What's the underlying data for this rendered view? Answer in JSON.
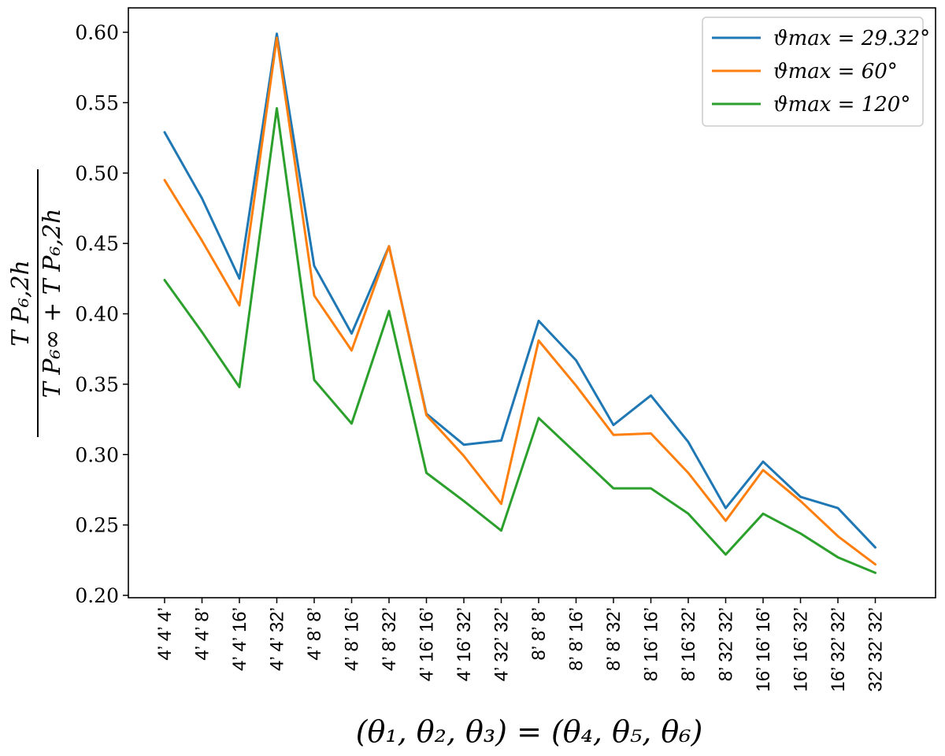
{
  "chart_data": {
    "type": "line",
    "xlabel": "(θ₁, θ₂, θ₃) = (θ₄, θ₅, θ₆)",
    "ylabel": {
      "numerator": "T P₆,2h",
      "denominator": "T P₆∞ + T P₆,2h"
    },
    "ylim": [
      0.2,
      0.6
    ],
    "yticks": [
      "0.20",
      "0.25",
      "0.30",
      "0.35",
      "0.40",
      "0.45",
      "0.50",
      "0.55",
      "0.60"
    ],
    "categories": [
      "4’ 4’ 4’",
      "4’ 4’ 8’",
      "4’ 4’ 16’",
      "4’ 4’ 32’",
      "4’ 8’ 8’",
      "4’ 8’ 16’",
      "4’ 8’ 32’",
      "4’ 16’ 16’",
      "4’ 16’ 32’",
      "4’ 32’ 32’",
      "8’ 8’ 8’",
      "8’ 8’ 16’",
      "8’ 8’ 32’",
      "8’ 16’ 16’",
      "8’ 16’ 32’",
      "8’ 32’ 32’",
      "16’ 16’ 16’",
      "16’ 16’ 32’",
      "16’ 32’ 32’",
      "32’ 32’ 32’"
    ],
    "series": [
      {
        "name": "ϑmax = 29.32°",
        "color": "#1f77b4",
        "values": [
          0.529,
          0.482,
          0.425,
          0.599,
          0.434,
          0.386,
          0.448,
          0.329,
          0.307,
          0.31,
          0.395,
          0.367,
          0.321,
          0.342,
          0.309,
          0.262,
          0.295,
          0.27,
          0.262,
          0.234
        ]
      },
      {
        "name": "ϑmax = 60°",
        "color": "#ff7f0e",
        "values": [
          0.495,
          0.452,
          0.406,
          0.596,
          0.413,
          0.374,
          0.448,
          0.328,
          0.299,
          0.265,
          0.381,
          0.349,
          0.314,
          0.315,
          0.287,
          0.253,
          0.289,
          0.267,
          0.242,
          0.222
        ]
      },
      {
        "name": "ϑmax = 120°",
        "color": "#2ca02c",
        "values": [
          0.424,
          0.387,
          0.348,
          0.546,
          0.353,
          0.322,
          0.402,
          0.287,
          0.267,
          0.246,
          0.326,
          0.301,
          0.276,
          0.276,
          0.258,
          0.229,
          0.258,
          0.244,
          0.227,
          0.216
        ]
      }
    ],
    "legend_position": "top-right",
    "grid": false
  }
}
